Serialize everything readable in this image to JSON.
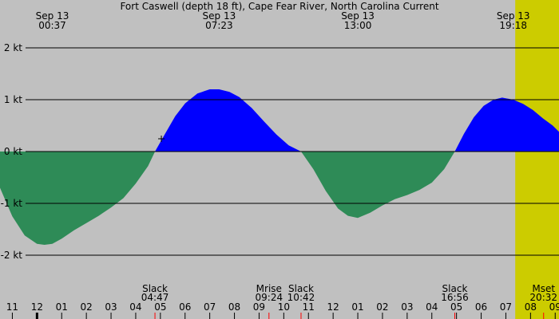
{
  "chart_data": {
    "type": "area",
    "title": "Fort Caswell (depth 18 ft), Cape Fear River, North Carolina Current",
    "xlabel": "",
    "ylabel": "",
    "units": "kt",
    "ylim": [
      -2.7,
      2.9
    ],
    "xlim": [
      10.5,
      33.2
    ],
    "grid": true,
    "daylight": {
      "start": 31.38,
      "end": 43.3
    },
    "x_ticks": [
      {
        "x": 11,
        "label": "11"
      },
      {
        "x": 12,
        "label": "12"
      },
      {
        "x": 13,
        "label": "01"
      },
      {
        "x": 14,
        "label": "02"
      },
      {
        "x": 15,
        "label": "03"
      },
      {
        "x": 16,
        "label": "04"
      },
      {
        "x": 17,
        "label": "05"
      },
      {
        "x": 18,
        "label": "06"
      },
      {
        "x": 19,
        "label": "07"
      },
      {
        "x": 20,
        "label": "08"
      },
      {
        "x": 21,
        "label": "09"
      },
      {
        "x": 22,
        "label": "10"
      },
      {
        "x": 23,
        "label": "11"
      },
      {
        "x": 24,
        "label": "12"
      },
      {
        "x": 25,
        "label": "01"
      },
      {
        "x": 26,
        "label": "02"
      },
      {
        "x": 27,
        "label": "03"
      },
      {
        "x": 28,
        "label": "04"
      },
      {
        "x": 29,
        "label": "05"
      },
      {
        "x": 30,
        "label": "06"
      },
      {
        "x": 31,
        "label": "07"
      },
      {
        "x": 32,
        "label": "08"
      },
      {
        "x": 33,
        "label": "09"
      }
    ],
    "y_ticks": [
      {
        "y": 2,
        "label": "2 kt"
      },
      {
        "y": 1,
        "label": "1 kt"
      },
      {
        "y": 0,
        "label": "0 kt"
      },
      {
        "y": -1,
        "label": "-1 kt"
      },
      {
        "y": -2,
        "label": "-2 kt"
      }
    ],
    "top_events": [
      {
        "x": 12.62,
        "date": "Sep 13",
        "time": "00:37"
      },
      {
        "x": 19.38,
        "date": "Sep 13",
        "time": "07:23"
      },
      {
        "x": 25.0,
        "date": "Sep 13",
        "time": "13:00"
      },
      {
        "x": 31.3,
        "date": "Sep 13",
        "time": "19:18"
      }
    ],
    "bottom_events": [
      {
        "x": 16.78,
        "label": "Slack",
        "time": "04:47",
        "marker": "red"
      },
      {
        "x": 21.4,
        "label": "Mrise",
        "time": "09:24",
        "marker": "red"
      },
      {
        "x": 22.7,
        "label": "Slack",
        "time": "10:42",
        "marker": "red"
      },
      {
        "x": 28.93,
        "label": "Slack",
        "time": "16:56",
        "marker": "red"
      },
      {
        "x": 32.53,
        "label": "Mset",
        "time": "20:32",
        "marker": "red"
      },
      {
        "x": 12.0,
        "label": "",
        "time": "",
        "marker": "black"
      }
    ],
    "series": [
      {
        "points": [
          [
            10.5,
            -0.7
          ],
          [
            11.0,
            -1.25
          ],
          [
            11.5,
            -1.62
          ],
          [
            12.0,
            -1.78
          ],
          [
            12.3,
            -1.8
          ],
          [
            12.62,
            -1.78
          ],
          [
            13.0,
            -1.68
          ],
          [
            13.5,
            -1.52
          ],
          [
            14.0,
            -1.38
          ],
          [
            14.5,
            -1.24
          ],
          [
            15.0,
            -1.08
          ],
          [
            15.5,
            -0.9
          ],
          [
            16.0,
            -0.62
          ],
          [
            16.5,
            -0.28
          ],
          [
            16.78,
            0.0
          ],
          [
            17.2,
            0.35
          ],
          [
            17.6,
            0.68
          ],
          [
            18.0,
            0.93
          ],
          [
            18.5,
            1.12
          ],
          [
            19.0,
            1.2
          ],
          [
            19.38,
            1.2
          ],
          [
            19.8,
            1.15
          ],
          [
            20.2,
            1.05
          ],
          [
            20.7,
            0.84
          ],
          [
            21.2,
            0.58
          ],
          [
            21.7,
            0.33
          ],
          [
            22.2,
            0.12
          ],
          [
            22.7,
            0.0
          ],
          [
            23.2,
            -0.34
          ],
          [
            23.7,
            -0.76
          ],
          [
            24.2,
            -1.1
          ],
          [
            24.6,
            -1.24
          ],
          [
            25.0,
            -1.28
          ],
          [
            25.5,
            -1.18
          ],
          [
            26.0,
            -1.04
          ],
          [
            26.5,
            -0.92
          ],
          [
            27.0,
            -0.84
          ],
          [
            27.5,
            -0.74
          ],
          [
            28.0,
            -0.6
          ],
          [
            28.5,
            -0.34
          ],
          [
            28.93,
            0.0
          ],
          [
            29.3,
            0.34
          ],
          [
            29.7,
            0.66
          ],
          [
            30.1,
            0.88
          ],
          [
            30.5,
            1.0
          ],
          [
            30.85,
            1.04
          ],
          [
            31.3,
            1.0
          ],
          [
            31.7,
            0.92
          ],
          [
            32.1,
            0.8
          ],
          [
            32.5,
            0.64
          ],
          [
            32.9,
            0.5
          ],
          [
            33.2,
            0.36
          ]
        ]
      }
    ],
    "colors": {
      "background": "#c0c0c0",
      "daylight": "#cccc00",
      "flood": "#0000ff",
      "ebb": "#2e8b57",
      "grid": "#000000",
      "event_marker": "#ff0000",
      "midnight_marker": "#000000"
    }
  }
}
